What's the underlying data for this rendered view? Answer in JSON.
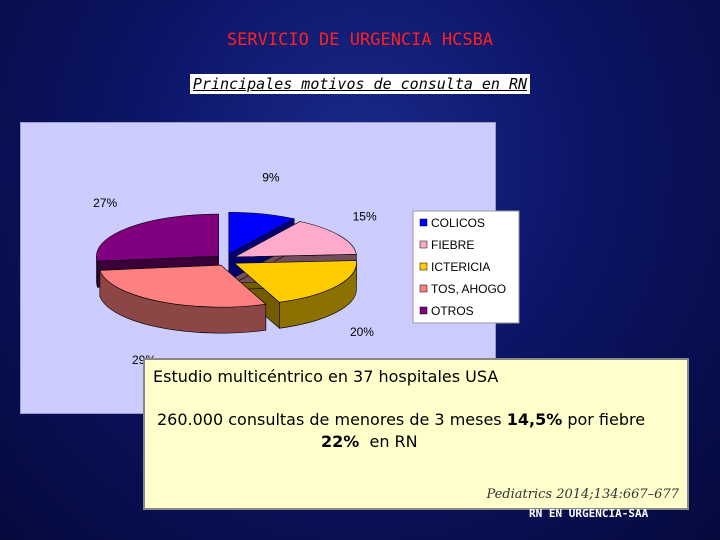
{
  "header": {
    "title": "SERVICIO DE URGENCIA HCSBA",
    "subtitle": "Principales motivos de consulta en RN"
  },
  "chart_data": {
    "type": "pie",
    "title": "",
    "labels": [
      "COLICOS",
      "FIEBRE",
      "ICTERICIA",
      "TOS, AHOGO",
      "OTROS"
    ],
    "values": [
      9,
      15,
      20,
      29,
      27
    ],
    "percent_labels": [
      "9%",
      "15%",
      "20%",
      "29%",
      "27%"
    ],
    "colors": [
      "#0000ff",
      "#ffaacc",
      "#ffcc00",
      "#ff8080",
      "#800080"
    ],
    "legend_position": "right",
    "exploded": true,
    "style": "3d"
  },
  "note": {
    "line1": "Estudio multicéntrico en 37 hospitales USA",
    "line2_a": "260.000 consultas de menores de 3 meses ",
    "line2_b": "14,5%",
    "line2_c": " por fiebre",
    "line3_a": "22%",
    "line3_b": "  en RN",
    "citation": "Pediatrics 2014;134:667–677"
  },
  "footer": {
    "text": "RN EN URGENCIA-SAA"
  }
}
